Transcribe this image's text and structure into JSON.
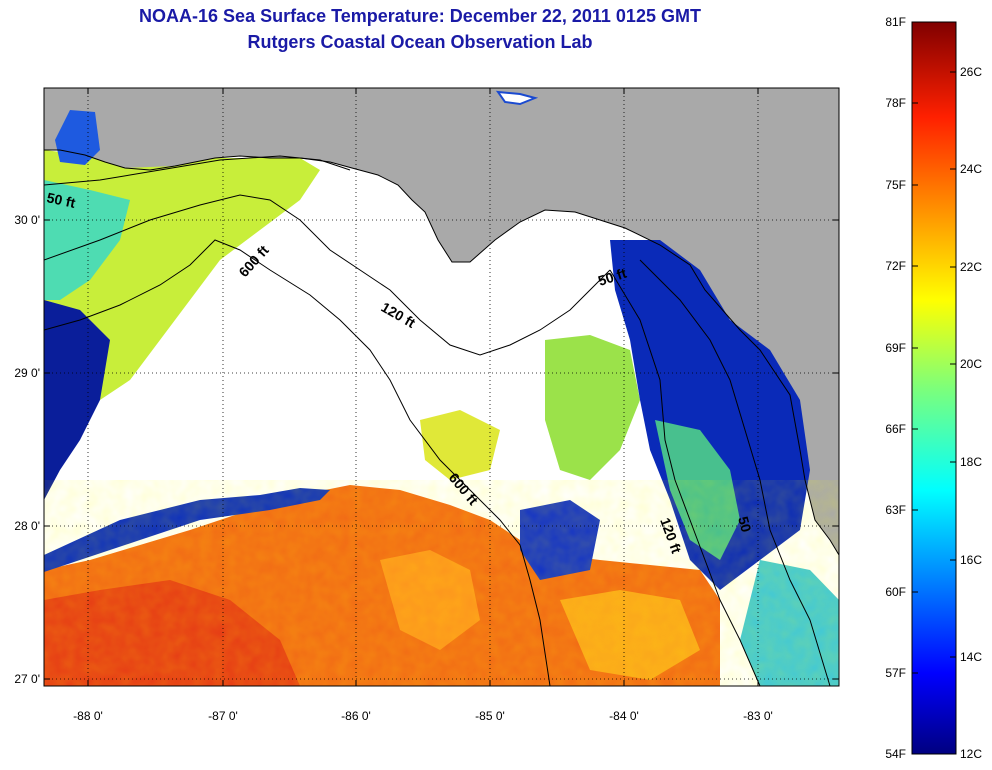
{
  "header": {
    "title": "NOAA-16 Sea Surface Temperature:  December 22, 2011 0125 GMT",
    "subtitle": "Rutgers Coastal Ocean Observation Lab"
  },
  "map": {
    "lon_labels": [
      "-88 0'",
      "-87 0'",
      "-86 0'",
      "-85 0'",
      "-84 0'",
      "-83 0'"
    ],
    "lat_labels": [
      "30 0'",
      "29 0'",
      "28 0'",
      "27 0'"
    ],
    "contour_labels": [
      "50 ft",
      "600 ft",
      "120 ft",
      "50 ft",
      "600 ft",
      "120 ft",
      "50"
    ],
    "colors": {
      "land": "#a9a9a9",
      "cloud": "#ffffff",
      "warm": "#f06a14",
      "cool": "#0a2fc0"
    }
  },
  "colorbar": {
    "fahrenheit": [
      "81F",
      "78F",
      "75F",
      "72F",
      "69F",
      "66F",
      "63F",
      "60F",
      "57F",
      "54F"
    ],
    "celsius": [
      "26C",
      "24C",
      "22C",
      "20C",
      "18C",
      "16C",
      "14C",
      "12C"
    ]
  }
}
